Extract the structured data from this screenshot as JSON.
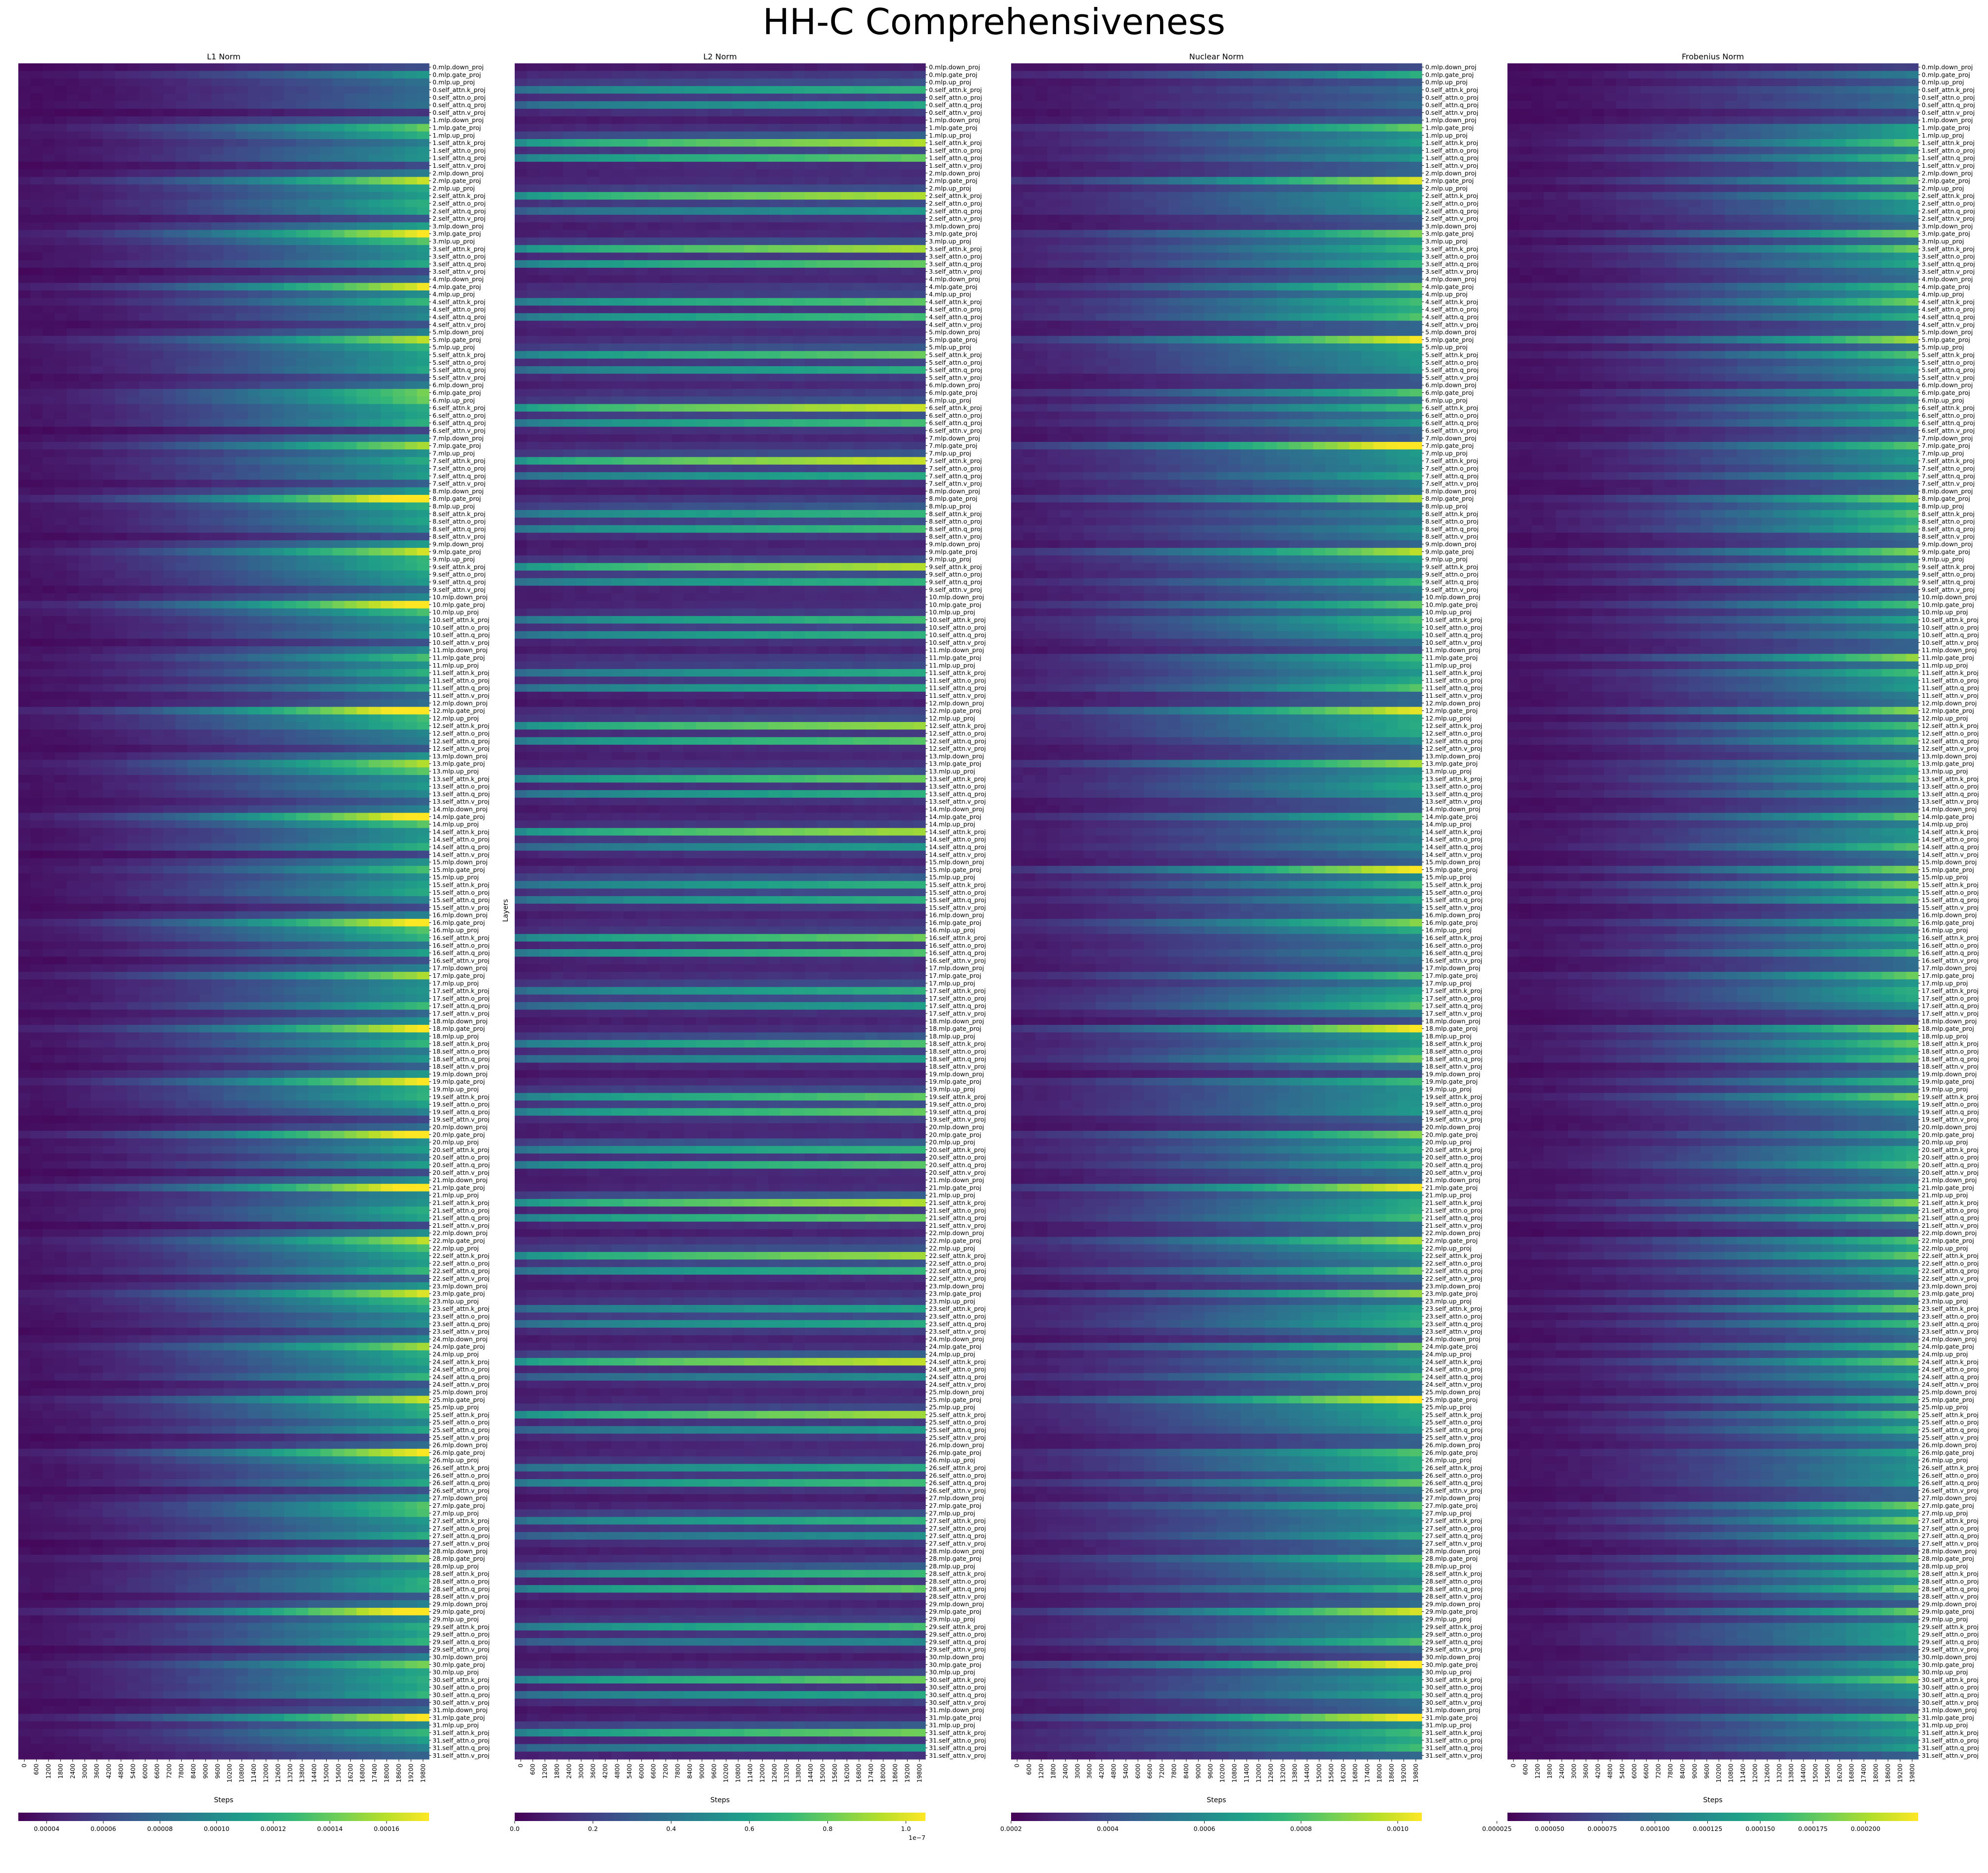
{
  "suptitle": "HH-C Comprehensiveness",
  "colormap": [
    "#440154",
    "#482777",
    "#3e4a89",
    "#31688e",
    "#26828e",
    "#1f9e89",
    "#35b779",
    "#6ece58",
    "#b5de2b",
    "#fde725"
  ],
  "shared": {
    "ylabel": "Layers",
    "xlabel": "Steps",
    "x_ticks": [
      "0",
      "600",
      "1200",
      "1800",
      "2400",
      "3000",
      "3600",
      "4200",
      "4800",
      "5400",
      "6000",
      "6600",
      "7200",
      "7800",
      "8400",
      "9000",
      "9600",
      "10200",
      "10800",
      "11400",
      "12000",
      "12600",
      "13200",
      "13800",
      "14400",
      "15000",
      "15600",
      "16200",
      "16800",
      "17400",
      "18000",
      "18600",
      "19200",
      "19800"
    ],
    "layer_count": 32,
    "module_order": [
      "mlp.down_proj",
      "mlp.gate_proj",
      "mlp.up_proj",
      "self_attn.k_proj",
      "self_attn.o_proj",
      "self_attn.q_proj",
      "self_attn.v_proj"
    ],
    "layer_labels": [
      "0.mlp.down_proj",
      "0.mlp.gate_proj",
      "0.mlp.up_proj",
      "0.self_attn.k_proj",
      "0.self_attn.o_proj",
      "0.self_attn.q_proj",
      "0.self_attn.v_proj",
      "1.mlp.down_proj",
      "1.mlp.gate_proj",
      "1.mlp.up_proj",
      "1.self_attn.k_proj",
      "1.self_attn.o_proj",
      "1.self_attn.q_proj",
      "1.self_attn.v_proj",
      "2.mlp.down_proj",
      "2.mlp.gate_proj",
      "2.mlp.up_proj",
      "2.self_attn.k_proj",
      "2.self_attn.o_proj",
      "2.self_attn.q_proj",
      "2.self_attn.v_proj",
      "3.mlp.down_proj",
      "3.mlp.gate_proj",
      "3.mlp.up_proj",
      "3.self_attn.k_proj",
      "3.self_attn.o_proj",
      "3.self_attn.q_proj",
      "3.self_attn.v_proj",
      "4.mlp.down_proj",
      "4.mlp.gate_proj",
      "4.mlp.up_proj",
      "4.self_attn.k_proj",
      "4.self_attn.o_proj",
      "4.self_attn.q_proj",
      "4.self_attn.v_proj",
      "5.mlp.down_proj",
      "5.mlp.gate_proj",
      "5.mlp.up_proj",
      "5.self_attn.k_proj",
      "5.self_attn.o_proj",
      "5.self_attn.q_proj",
      "5.self_attn.v_proj",
      "6.mlp.down_proj",
      "6.mlp.gate_proj",
      "6.mlp.up_proj",
      "6.self_attn.k_proj",
      "6.self_attn.o_proj",
      "6.self_attn.q_proj",
      "6.self_attn.v_proj",
      "7.mlp.down_proj",
      "7.mlp.gate_proj",
      "7.mlp.up_proj",
      "7.self_attn.k_proj",
      "7.self_attn.o_proj",
      "7.self_attn.q_proj",
      "7.self_attn.v_proj",
      "8.mlp.down_proj",
      "8.mlp.gate_proj",
      "8.mlp.up_proj",
      "8.self_attn.k_proj",
      "8.self_attn.o_proj",
      "8.self_attn.q_proj",
      "8.self_attn.v_proj",
      "9.mlp.down_proj",
      "9.mlp.gate_proj",
      "9.mlp.up_proj",
      "9.self_attn.k_proj",
      "9.self_attn.o_proj",
      "9.self_attn.q_proj",
      "9.self_attn.v_proj",
      "10.mlp.down_proj",
      "10.mlp.gate_proj",
      "10.mlp.up_proj",
      "10.self_attn.k_proj",
      "10.self_attn.o_proj",
      "10.self_attn.q_proj",
      "10.self_attn.v_proj",
      "11.mlp.down_proj",
      "11.mlp.gate_proj",
      "11.mlp.up_proj",
      "11.self_attn.k_proj",
      "11.self_attn.o_proj",
      "11.self_attn.q_proj",
      "11.self_attn.v_proj",
      "12.mlp.down_proj",
      "12.mlp.gate_proj",
      "12.mlp.up_proj",
      "12.self_attn.k_proj",
      "12.self_attn.o_proj",
      "12.self_attn.q_proj",
      "12.self_attn.v_proj",
      "13.mlp.down_proj",
      "13.mlp.gate_proj",
      "13.mlp.up_proj",
      "13.self_attn.k_proj",
      "13.self_attn.o_proj",
      "13.self_attn.q_proj",
      "13.self_attn.v_proj",
      "14.mlp.down_proj",
      "14.mlp.gate_proj",
      "14.mlp.up_proj",
      "14.self_attn.k_proj",
      "14.self_attn.o_proj",
      "14.self_attn.q_proj",
      "14.self_attn.v_proj",
      "15.mlp.down_proj",
      "15.mlp.gate_proj",
      "15.mlp.up_proj",
      "15.self_attn.k_proj",
      "15.self_attn.o_proj",
      "15.self_attn.q_proj",
      "15.self_attn.v_proj",
      "16.mlp.down_proj",
      "16.mlp.gate_proj",
      "16.mlp.up_proj",
      "16.self_attn.k_proj",
      "16.self_attn.o_proj",
      "16.self_attn.q_proj",
      "16.self_attn.v_proj",
      "17.mlp.down_proj",
      "17.mlp.gate_proj",
      "17.mlp.up_proj",
      "17.self_attn.k_proj",
      "17.self_attn.o_proj",
      "17.self_attn.q_proj",
      "17.self_attn.v_proj",
      "18.mlp.down_proj",
      "18.mlp.gate_proj",
      "18.mlp.up_proj",
      "18.self_attn.k_proj",
      "18.self_attn.o_proj",
      "18.self_attn.q_proj",
      "18.self_attn.v_proj",
      "19.mlp.down_proj",
      "19.mlp.gate_proj",
      "19.mlp.up_proj",
      "19.self_attn.k_proj",
      "19.self_attn.o_proj",
      "19.self_attn.q_proj",
      "19.self_attn.v_proj",
      "20.mlp.down_proj",
      "20.mlp.gate_proj",
      "20.mlp.up_proj",
      "20.self_attn.k_proj",
      "20.self_attn.o_proj",
      "20.self_attn.q_proj",
      "20.self_attn.v_proj",
      "21.mlp.down_proj",
      "21.mlp.gate_proj",
      "21.mlp.up_proj",
      "21.self_attn.k_proj",
      "21.self_attn.o_proj",
      "21.self_attn.q_proj",
      "21.self_attn.v_proj",
      "22.mlp.down_proj",
      "22.mlp.gate_proj",
      "22.mlp.up_proj",
      "22.self_attn.k_proj",
      "22.self_attn.o_proj",
      "22.self_attn.q_proj",
      "22.self_attn.v_proj",
      "23.mlp.down_proj",
      "23.mlp.gate_proj",
      "23.mlp.up_proj",
      "23.self_attn.k_proj",
      "23.self_attn.o_proj",
      "23.self_attn.q_proj",
      "23.self_attn.v_proj",
      "24.mlp.down_proj",
      "24.mlp.gate_proj",
      "24.mlp.up_proj",
      "24.self_attn.k_proj",
      "24.self_attn.o_proj",
      "24.self_attn.q_proj",
      "24.self_attn.v_proj",
      "25.mlp.down_proj",
      "25.mlp.gate_proj",
      "25.mlp.up_proj",
      "25.self_attn.k_proj",
      "25.self_attn.o_proj",
      "25.self_attn.q_proj",
      "25.self_attn.v_proj",
      "26.mlp.down_proj",
      "26.mlp.gate_proj",
      "26.mlp.up_proj",
      "26.self_attn.k_proj",
      "26.self_attn.o_proj",
      "26.self_attn.q_proj",
      "26.self_attn.v_proj",
      "27.mlp.down_proj",
      "27.mlp.gate_proj",
      "27.mlp.up_proj",
      "27.self_attn.k_proj",
      "27.self_attn.o_proj",
      "27.self_attn.q_proj",
      "27.self_attn.v_proj",
      "28.mlp.down_proj",
      "28.mlp.gate_proj",
      "28.mlp.up_proj",
      "28.self_attn.k_proj",
      "28.self_attn.o_proj",
      "28.self_attn.q_proj",
      "28.self_attn.v_proj",
      "29.mlp.down_proj",
      "29.mlp.gate_proj",
      "29.mlp.up_proj",
      "29.self_attn.k_proj",
      "29.self_attn.o_proj",
      "29.self_attn.q_proj",
      "29.self_attn.v_proj",
      "30.mlp.down_proj",
      "30.mlp.gate_proj",
      "30.mlp.up_proj",
      "30.self_attn.k_proj",
      "30.self_attn.o_proj",
      "30.self_attn.q_proj",
      "30.self_attn.v_proj",
      "31.mlp.down_proj",
      "31.mlp.gate_proj",
      "31.mlp.up_proj",
      "31.self_attn.k_proj",
      "31.self_attn.o_proj",
      "31.self_attn.q_proj",
      "31.self_attn.v_proj"
    ]
  },
  "chart_data": [
    {
      "type": "heatmap",
      "title": "L1 Norm",
      "xlabel": "Steps",
      "ylabel": "",
      "colorbar_ticks": [
        "0.00004",
        "0.00006",
        "0.00008",
        "0.00010",
        "0.00012",
        "0.00014",
        "0.00016"
      ],
      "colorbar_offset": "",
      "vmin": 3e-05,
      "vmax": 0.000175,
      "module_final_levels": {
        "mlp.down_proj": 0.45,
        "mlp.gate_proj": 0.9,
        "mlp.up_proj": 0.6,
        "self_attn.k_proj": 0.55,
        "self_attn.o_proj": 0.5,
        "self_attn.q_proj": 0.55,
        "self_attn.v_proj": 0.25
      },
      "growth": "gradual"
    },
    {
      "type": "heatmap",
      "title": "L2 Norm",
      "xlabel": "Steps",
      "ylabel": "Layers",
      "colorbar_ticks": [
        "0.0",
        "0.2",
        "0.4",
        "0.6",
        "0.8",
        "1.0"
      ],
      "colorbar_offset": "1e−7",
      "vmin": 0.0,
      "vmax": 1.05e-07,
      "module_final_levels": {
        "mlp.down_proj": 0.1,
        "mlp.gate_proj": 0.15,
        "mlp.up_proj": 0.25,
        "self_attn.k_proj": 0.75,
        "self_attn.o_proj": 0.2,
        "self_attn.q_proj": 0.6,
        "self_attn.v_proj": 0.15
      },
      "growth": "early"
    },
    {
      "type": "heatmap",
      "title": "Nuclear Norm",
      "xlabel": "Steps",
      "ylabel": "",
      "colorbar_ticks": [
        "0.0002",
        "0.0004",
        "0.0006",
        "0.0008",
        "0.0010"
      ],
      "colorbar_offset": "",
      "vmin": 0.0002,
      "vmax": 0.00105,
      "module_final_levels": {
        "mlp.down_proj": 0.3,
        "mlp.gate_proj": 0.85,
        "mlp.up_proj": 0.5,
        "self_attn.k_proj": 0.55,
        "self_attn.o_proj": 0.5,
        "self_attn.q_proj": 0.6,
        "self_attn.v_proj": 0.35
      },
      "growth": "mixed"
    },
    {
      "type": "heatmap",
      "title": "Frobenius Norm",
      "xlabel": "Steps",
      "ylabel": "",
      "colorbar_ticks": [
        "0.000025",
        "0.000050",
        "0.000075",
        "0.000100",
        "0.000125",
        "0.000150",
        "0.000175",
        "0.000200"
      ],
      "colorbar_offset": "",
      "vmin": 3e-05,
      "vmax": 0.000225,
      "module_final_levels": {
        "mlp.down_proj": 0.3,
        "mlp.gate_proj": 0.7,
        "mlp.up_proj": 0.45,
        "self_attn.k_proj": 0.65,
        "self_attn.o_proj": 0.5,
        "self_attn.q_proj": 0.6,
        "self_attn.v_proj": 0.35
      },
      "growth": "gradual"
    }
  ]
}
